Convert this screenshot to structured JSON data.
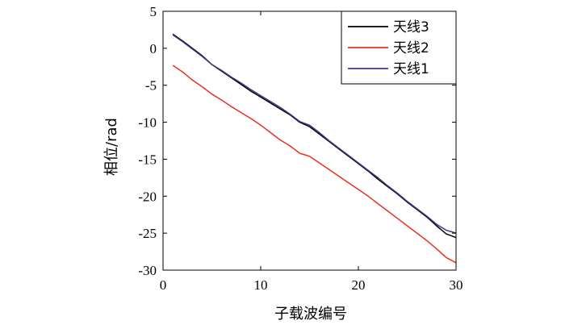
{
  "chart_data": {
    "type": "line",
    "title": "",
    "xlabel": "子载波编号",
    "ylabel": "相位/rad",
    "xlim": [
      0,
      30
    ],
    "ylim": [
      -30,
      5
    ],
    "xticks": [
      0,
      10,
      20,
      30
    ],
    "yticks": [
      5,
      0,
      -5,
      -10,
      -15,
      -20,
      -25,
      -30
    ],
    "grid": false,
    "legend_position": "top-right",
    "series": [
      {
        "name": "天线3",
        "color": "#000000",
        "x": [
          1,
          2,
          3,
          4,
          5,
          6,
          7,
          8,
          9,
          10,
          11,
          12,
          13,
          14,
          15,
          16,
          17,
          18,
          19,
          20,
          21,
          22,
          23,
          24,
          25,
          26,
          27,
          28,
          29,
          30
        ],
        "y": [
          1.9,
          1.0,
          0.0,
          -1.0,
          -2.2,
          -3.1,
          -4.0,
          -4.9,
          -5.8,
          -6.6,
          -7.4,
          -8.2,
          -9.0,
          -10.0,
          -10.6,
          -11.6,
          -12.6,
          -13.6,
          -14.6,
          -15.6,
          -16.6,
          -17.7,
          -18.7,
          -19.7,
          -20.8,
          -21.8,
          -22.8,
          -24.0,
          -25.1,
          -25.6
        ]
      },
      {
        "name": "天线2",
        "color": "#e8321e",
        "x": [
          1,
          2,
          3,
          4,
          5,
          6,
          7,
          8,
          9,
          10,
          11,
          12,
          13,
          14,
          15,
          16,
          17,
          18,
          19,
          20,
          21,
          22,
          23,
          24,
          25,
          26,
          27,
          28,
          29,
          30
        ],
        "y": [
          -2.3,
          -3.2,
          -4.3,
          -5.2,
          -6.2,
          -7.0,
          -7.9,
          -8.7,
          -9.5,
          -10.4,
          -11.4,
          -12.4,
          -13.2,
          -14.2,
          -14.6,
          -15.5,
          -16.4,
          -17.3,
          -18.2,
          -19.1,
          -20.0,
          -21.0,
          -22.0,
          -23.0,
          -24.0,
          -25.0,
          -26.0,
          -27.1,
          -28.3,
          -29.0
        ]
      },
      {
        "name": "天线1",
        "color": "#3a3a8c",
        "x": [
          1,
          2,
          3,
          4,
          5,
          6,
          7,
          8,
          9,
          10,
          11,
          12,
          13,
          14,
          15,
          16,
          17,
          18,
          19,
          20,
          21,
          22,
          23,
          24,
          25,
          26,
          27,
          28,
          29,
          30
        ],
        "y": [
          1.8,
          0.9,
          -0.1,
          -1.1,
          -2.2,
          -3.0,
          -3.9,
          -4.7,
          -5.6,
          -6.4,
          -7.2,
          -8.0,
          -8.9,
          -9.9,
          -10.4,
          -11.4,
          -12.5,
          -13.5,
          -14.5,
          -15.5,
          -16.5,
          -17.5,
          -18.6,
          -19.6,
          -20.7,
          -21.7,
          -22.7,
          -23.8,
          -24.6,
          -25.0
        ]
      }
    ]
  }
}
